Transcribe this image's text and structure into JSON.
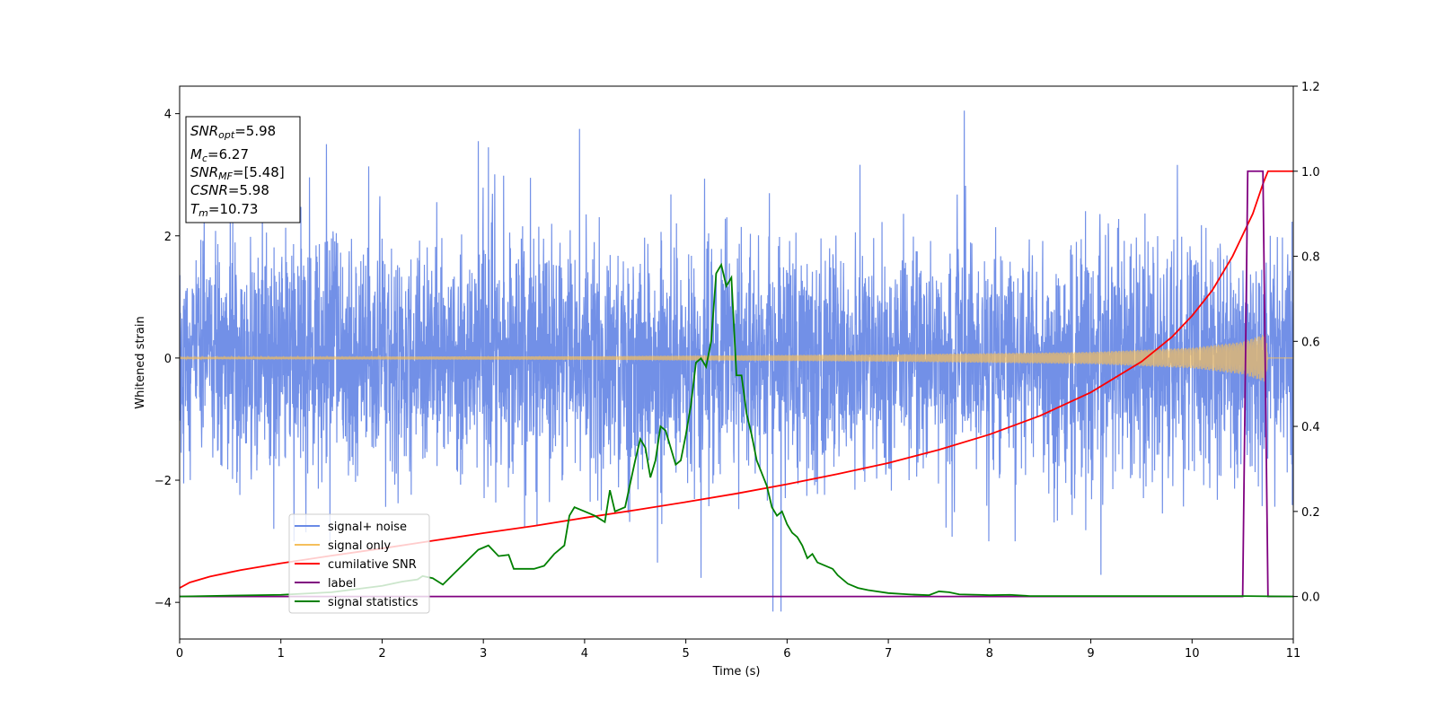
{
  "chart_data": {
    "type": "line",
    "xlabel": "Time (s)",
    "ylabel": "Whitened strain",
    "xlim": [
      0,
      11
    ],
    "ylim": [
      -4.6,
      4.45
    ],
    "y2lim": [
      -0.1,
      1.2
    ],
    "xticks": [
      "0",
      "1",
      "2",
      "3",
      "4",
      "5",
      "6",
      "7",
      "8",
      "9",
      "10",
      "11"
    ],
    "yticks": [
      "−4",
      "−2",
      "0",
      "2",
      "4"
    ],
    "y2ticks": [
      "0.0",
      "0.2",
      "0.4",
      "0.6",
      "0.8",
      "1.0",
      "1.2"
    ],
    "grid": false,
    "legend_position": "lower-left",
    "annotation": {
      "lines": [
        {
          "main": "SNR",
          "sub": "opt",
          "value": "=5.98"
        },
        {
          "main": "M",
          "sub": "c",
          "value": "=6.27"
        },
        {
          "main": "SNR",
          "sub": "MF",
          "value": "=[5.48]"
        },
        {
          "main": "CSNR",
          "sub": "",
          "value": "=5.98"
        },
        {
          "main": "T",
          "sub": "m",
          "value": "=10.73"
        }
      ]
    },
    "series": [
      {
        "name": "signal+ noise",
        "color": "#6a8ae6",
        "axis": "left",
        "kind": "noise",
        "sigma": 0.95,
        "clip": [
          -3.0,
          3.3
        ],
        "spikes": [
          [
            7.75,
            4.05
          ],
          [
            5.86,
            -4.15
          ],
          [
            5.94,
            -4.15
          ],
          [
            3.95,
            3.75
          ],
          [
            2.95,
            3.55
          ],
          [
            1.45,
            3.5
          ],
          [
            5.15,
            -3.6
          ],
          [
            9.1,
            -3.55
          ],
          [
            4.72,
            -3.35
          ],
          [
            3.05,
            3.45
          ]
        ]
      },
      {
        "name": "signal only",
        "color": "#f5bf5c",
        "axis": "left",
        "kind": "chirp",
        "envelope": [
          [
            0,
            0.02
          ],
          [
            4,
            0.03
          ],
          [
            7,
            0.06
          ],
          [
            9,
            0.1
          ],
          [
            10,
            0.17
          ],
          [
            10.5,
            0.27
          ],
          [
            10.73,
            0.4
          ],
          [
            10.75,
            0.0
          ],
          [
            11,
            0.0
          ]
        ]
      },
      {
        "name": "cumilative SNR",
        "color": "#ff0000",
        "axis": "right",
        "x": [
          0,
          0.1,
          0.3,
          0.6,
          1,
          1.5,
          2,
          2.5,
          3,
          3.5,
          4,
          4.5,
          5,
          5.5,
          6,
          6.5,
          7,
          7.5,
          8,
          8.5,
          9,
          9.5,
          9.8,
          10,
          10.2,
          10.4,
          10.5,
          10.6,
          10.7,
          10.75,
          11
        ],
        "y": [
          0.02,
          0.033,
          0.047,
          0.062,
          0.078,
          0.096,
          0.113,
          0.131,
          0.149,
          0.166,
          0.185,
          0.203,
          0.222,
          0.242,
          0.264,
          0.288,
          0.314,
          0.345,
          0.381,
          0.425,
          0.48,
          0.552,
          0.61,
          0.66,
          0.72,
          0.8,
          0.85,
          0.9,
          0.97,
          1.0,
          1.0
        ]
      },
      {
        "name": "label",
        "color": "#800080",
        "axis": "right",
        "x": [
          0,
          10.5,
          10.55,
          10.7,
          10.75,
          11
        ],
        "y": [
          0,
          0,
          1,
          1,
          0,
          0
        ]
      },
      {
        "name": "signal statistics",
        "color": "#008000",
        "axis": "right",
        "x": [
          0,
          1,
          1.5,
          2,
          2.2,
          2.35,
          2.4,
          2.5,
          2.6,
          2.8,
          2.95,
          3.05,
          3.15,
          3.25,
          3.3,
          3.5,
          3.6,
          3.7,
          3.8,
          3.85,
          3.9,
          4.0,
          4.1,
          4.2,
          4.25,
          4.3,
          4.4,
          4.5,
          4.55,
          4.6,
          4.65,
          4.7,
          4.75,
          4.8,
          4.85,
          4.9,
          4.95,
          5.0,
          5.05,
          5.1,
          5.15,
          5.2,
          5.25,
          5.3,
          5.35,
          5.4,
          5.45,
          5.5,
          5.55,
          5.6,
          5.65,
          5.7,
          5.75,
          5.8,
          5.85,
          5.9,
          5.95,
          6.0,
          6.05,
          6.1,
          6.15,
          6.2,
          6.25,
          6.3,
          6.35,
          6.4,
          6.45,
          6.5,
          6.6,
          6.7,
          6.8,
          7.0,
          7.2,
          7.4,
          7.5,
          7.6,
          7.7,
          7.9,
          8.0,
          8.2,
          8.4,
          8.6,
          9.0,
          9.5,
          10.0,
          10.5,
          11.0
        ],
        "y": [
          0.0,
          0.004,
          0.01,
          0.025,
          0.035,
          0.04,
          0.048,
          0.043,
          0.028,
          0.075,
          0.11,
          0.12,
          0.095,
          0.098,
          0.065,
          0.065,
          0.072,
          0.1,
          0.12,
          0.19,
          0.21,
          0.2,
          0.19,
          0.175,
          0.25,
          0.2,
          0.21,
          0.32,
          0.37,
          0.35,
          0.28,
          0.32,
          0.4,
          0.39,
          0.35,
          0.31,
          0.32,
          0.38,
          0.45,
          0.55,
          0.56,
          0.54,
          0.6,
          0.76,
          0.78,
          0.73,
          0.75,
          0.52,
          0.52,
          0.43,
          0.38,
          0.32,
          0.29,
          0.26,
          0.21,
          0.19,
          0.2,
          0.17,
          0.15,
          0.14,
          0.12,
          0.09,
          0.1,
          0.08,
          0.075,
          0.07,
          0.065,
          0.05,
          0.03,
          0.02,
          0.015,
          0.008,
          0.005,
          0.003,
          0.012,
          0.01,
          0.005,
          0.004,
          0.003,
          0.004,
          0.001,
          0.001,
          0.001,
          0.001,
          0.001,
          0.001,
          0.0
        ]
      }
    ]
  }
}
